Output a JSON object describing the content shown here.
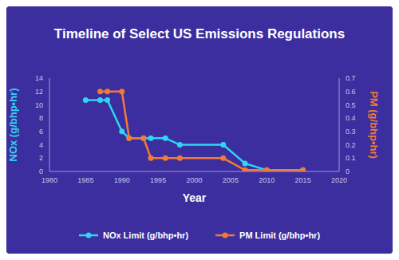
{
  "chart_data": {
    "type": "line",
    "title": "Timeline of Select US Emissions Regulations",
    "x_label": "Year",
    "y_label": "NOx (g/bhp•hr)",
    "y2_label": "PM (g/bhp•hr)",
    "x": [
      1985,
      1987,
      1988,
      1990,
      1991,
      1993,
      1994,
      1996,
      1998,
      2004,
      2007,
      2010,
      2015
    ],
    "series": [
      {
        "name": "NOx Limit (g/bhp•hr)",
        "color": "#2fd5f2",
        "marker": "circle",
        "values": [
          10.7,
          10.7,
          10.7,
          6.0,
          5.0,
          5.0,
          5.0,
          5.0,
          4.0,
          4.0,
          1.2,
          0.2,
          0.2
        ]
      },
      {
        "name": "PM Limit (g/bhp•hr)",
        "color": "#f27a35",
        "marker": "circle",
        "axis": "y2",
        "values": [
          null,
          0.6,
          0.6,
          0.6,
          0.25,
          0.25,
          0.1,
          0.1,
          0.1,
          0.1,
          0.01,
          0.01,
          0.01
        ]
      }
    ],
    "xlim": [
      1980,
      2020
    ],
    "xticks": [
      1980,
      1985,
      1990,
      1995,
      2000,
      2005,
      2010,
      2015,
      2020
    ],
    "ylim": [
      0,
      14
    ],
    "yticks": [
      0,
      2,
      4,
      6,
      8,
      10,
      12,
      14
    ],
    "y2lim": [
      0,
      0.7
    ],
    "y2ticks": [
      0,
      0.1,
      0.2,
      0.3,
      0.4,
      0.5,
      0.6,
      0.7
    ],
    "grid": false,
    "legend": "bottom"
  }
}
